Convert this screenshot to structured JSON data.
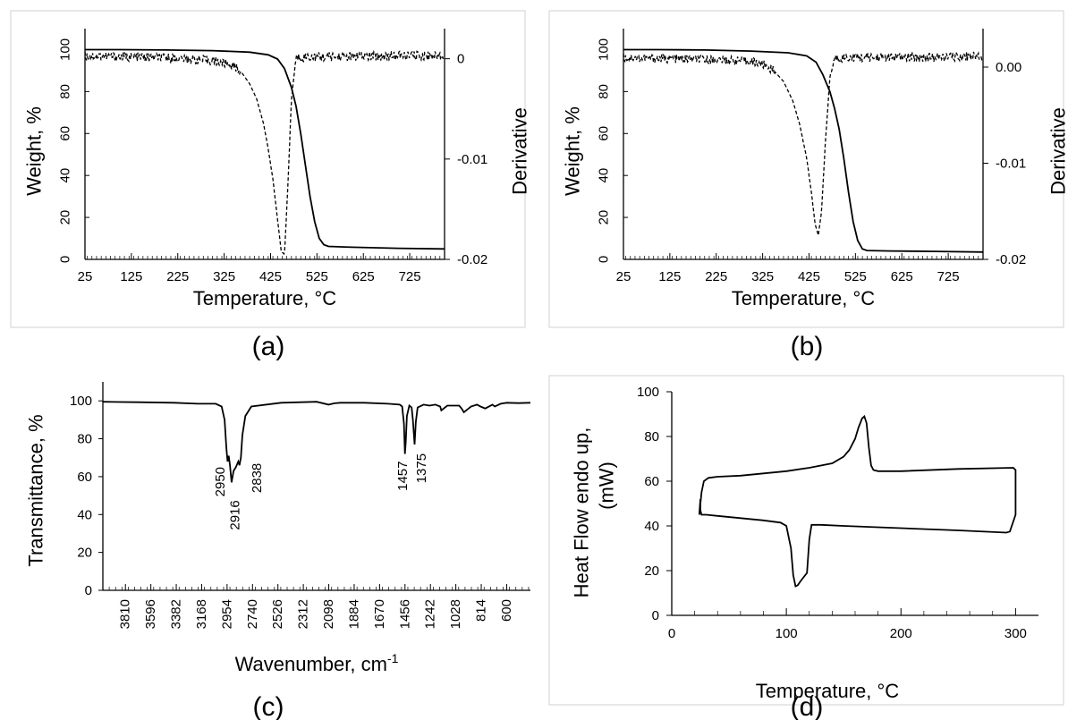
{
  "chart_data": [
    {
      "id": "a",
      "type": "line",
      "panel_label": "(a)",
      "xlabel": "Temperature, °C",
      "ylabel": "Weight, %",
      "y2label": "Derivative",
      "xlim": [
        25,
        800
      ],
      "ylim": [
        0,
        110
      ],
      "y2lim": [
        -0.02,
        0.003
      ],
      "xticks": [
        25,
        125,
        225,
        325,
        425,
        525,
        625,
        725
      ],
      "yticks": [
        0,
        20,
        40,
        60,
        80,
        100
      ],
      "y2ticks": [
        0,
        -0.01,
        -0.02
      ],
      "y2ticklabels": [
        "0",
        "-0.01",
        "-0.02"
      ],
      "series": [
        {
          "style": "solid",
          "axis": "left",
          "x": [
            25,
            100,
            200,
            300,
            380,
            420,
            440,
            455,
            470,
            480,
            490,
            500,
            510,
            520,
            530,
            540,
            550,
            600,
            700,
            800
          ],
          "y": [
            100,
            100,
            99.8,
            99.5,
            98.8,
            97.5,
            95.5,
            91,
            82,
            73,
            60,
            45,
            30,
            18,
            10,
            7,
            6.2,
            5.8,
            5.3,
            5
          ]
        },
        {
          "style": "dashed",
          "axis": "right",
          "x": [
            25,
            100,
            200,
            300,
            340,
            360,
            380,
            395,
            410,
            420,
            430,
            440,
            448,
            455,
            462,
            470,
            480,
            500,
            600,
            700,
            800
          ],
          "y": [
            0.0003,
            0.0002,
            0.0001,
            -0.0002,
            -0.0006,
            -0.0012,
            -0.0025,
            -0.004,
            -0.0065,
            -0.009,
            -0.012,
            -0.016,
            -0.0192,
            -0.0195,
            -0.013,
            -0.004,
            0.0001,
            0.0002,
            0.0002,
            0.0003,
            0.0003
          ]
        }
      ]
    },
    {
      "id": "b",
      "type": "line",
      "panel_label": "(b)",
      "xlabel": "Temperature, °C",
      "ylabel": "Weight, %",
      "y2label": "Derivative",
      "xlim": [
        25,
        800
      ],
      "ylim": [
        0,
        110
      ],
      "y2lim": [
        -0.02,
        0.004
      ],
      "xticks": [
        25,
        125,
        225,
        325,
        425,
        525,
        625,
        725
      ],
      "yticks": [
        0,
        20,
        40,
        60,
        80,
        100
      ],
      "y2ticks": [
        0,
        -0.01,
        -0.02
      ],
      "y2ticklabels": [
        "0.00",
        "-0.01",
        "-0.02"
      ],
      "series": [
        {
          "style": "solid",
          "axis": "left",
          "x": [
            25,
            100,
            200,
            300,
            380,
            420,
            440,
            455,
            470,
            480,
            490,
            500,
            510,
            520,
            530,
            540,
            550,
            600,
            700,
            800
          ],
          "y": [
            100,
            100,
            99.8,
            99.3,
            98.5,
            97,
            94,
            88,
            80,
            72,
            62,
            48,
            32,
            18,
            9,
            5,
            4.2,
            4,
            3.8,
            3.5
          ]
        },
        {
          "style": "dashed",
          "axis": "right",
          "x": [
            25,
            100,
            200,
            300,
            330,
            350,
            370,
            390,
            405,
            420,
            430,
            438,
            445,
            452,
            460,
            470,
            480,
            500,
            600,
            700,
            800
          ],
          "y": [
            0.001,
            0.0009,
            0.0008,
            0.0006,
            0.0002,
            -0.0004,
            -0.0015,
            -0.0035,
            -0.006,
            -0.0095,
            -0.013,
            -0.0163,
            -0.0175,
            -0.015,
            -0.008,
            -0.001,
            0.0009,
            0.001,
            0.001,
            0.001,
            0.0012
          ]
        }
      ]
    },
    {
      "id": "c",
      "type": "line",
      "panel_label": "(c)",
      "xlabel": "Wavenumber, cm",
      "xlabel_sup": "-1",
      "ylabel": "Transmittance, %",
      "xlim": [
        4000,
        400
      ],
      "ylim": [
        0,
        110
      ],
      "xticks": [
        3810,
        3596,
        3382,
        3168,
        2954,
        2740,
        2526,
        2312,
        2098,
        1884,
        1670,
        1456,
        1242,
        1028,
        814,
        600
      ],
      "yticks": [
        0,
        20,
        40,
        60,
        80,
        100
      ],
      "peak_labels": [
        {
          "x": 2950,
          "text": "2950"
        },
        {
          "x": 2916,
          "text": "2916"
        },
        {
          "x": 2838,
          "text": "2838"
        },
        {
          "x": 1457,
          "text": "1457"
        },
        {
          "x": 1375,
          "text": "1375"
        }
      ],
      "series": [
        {
          "style": "solid",
          "x": [
            4000,
            3700,
            3400,
            3200,
            3050,
            3000,
            2975,
            2960,
            2950,
            2940,
            2930,
            2916,
            2900,
            2880,
            2860,
            2850,
            2838,
            2825,
            2800,
            2750,
            2500,
            2200,
            2100,
            2050,
            2000,
            1800,
            1600,
            1500,
            1480,
            1465,
            1457,
            1450,
            1440,
            1420,
            1400,
            1390,
            1375,
            1365,
            1350,
            1300,
            1250,
            1200,
            1160,
            1150,
            1100,
            1000,
            980,
            960,
            900,
            850,
            820,
            780,
            720,
            700,
            650,
            600,
            500,
            400
          ],
          "y": [
            99.5,
            99.3,
            99,
            98.5,
            98.5,
            97,
            90,
            75,
            68,
            71,
            66,
            57,
            63,
            65,
            68,
            66,
            70,
            82,
            92,
            97,
            99,
            99.5,
            98,
            98.7,
            99,
            99,
            98.5,
            98,
            97,
            88,
            72,
            78,
            92,
            97.5,
            96.5,
            90,
            77,
            89,
            96.5,
            98,
            97.5,
            98,
            97,
            95,
            97.5,
            97.5,
            96,
            94,
            97,
            98,
            97,
            96,
            98,
            97,
            98.5,
            99,
            98.8,
            99
          ]
        }
      ]
    },
    {
      "id": "d",
      "type": "line",
      "panel_label": "(d)",
      "xlabel": "Temperature, °C",
      "ylabel_line1": "Heat Flow endo up,",
      "ylabel_line2": "(mW)",
      "xlim": [
        0,
        320
      ],
      "ylim": [
        0,
        100
      ],
      "xticks": [
        0,
        100,
        200,
        300
      ],
      "yticks": [
        0,
        20,
        40,
        60,
        80,
        100
      ],
      "series": [
        {
          "style": "solid",
          "x": [
            25,
            24,
            26,
            28,
            32,
            40,
            60,
            80,
            100,
            120,
            140,
            150,
            155,
            160,
            163,
            166,
            168,
            170,
            172,
            174,
            176,
            180,
            200,
            250,
            298,
            300,
            300,
            295,
            292,
            250,
            200,
            150,
            130,
            122,
            120,
            118,
            115,
            112,
            110,
            108,
            106,
            104,
            100,
            95,
            80,
            60,
            40,
            30,
            26,
            25
          ],
          "y": [
            52,
            45,
            55,
            60,
            61.5,
            62,
            62.5,
            63.5,
            64.5,
            66,
            68,
            71,
            74,
            79,
            84,
            88,
            89,
            86,
            75,
            67,
            65,
            64.5,
            64.5,
            65.5,
            66,
            65,
            45,
            37.5,
            37,
            38,
            39,
            40,
            40.5,
            40.5,
            34,
            19,
            17,
            15,
            13.5,
            13,
            18,
            30,
            40,
            41.5,
            42.5,
            43.5,
            44.5,
            45,
            45,
            47
          ]
        }
      ]
    }
  ]
}
